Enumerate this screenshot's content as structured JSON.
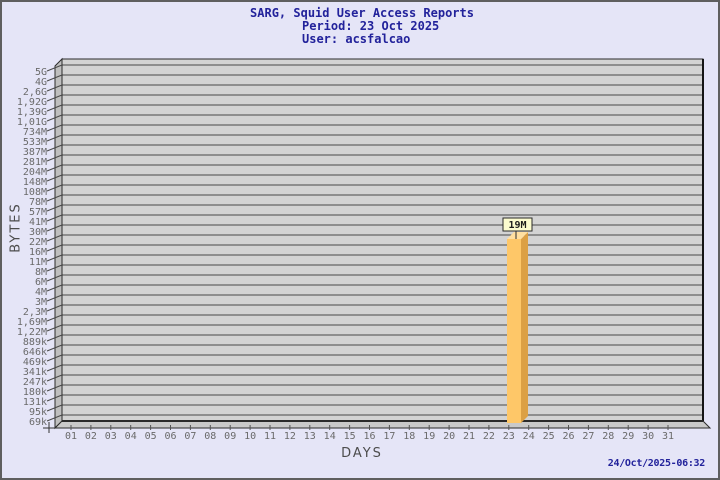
{
  "title": {
    "line1": "SARG, Squid User Access Reports",
    "line2": "Period: 23 Oct 2025",
    "line3": "User: acsfalcao"
  },
  "footer": {
    "timestamp": "24/Oct/2025-06:32"
  },
  "chart_data": {
    "type": "bar",
    "title": "SARG, Squid User Access Reports",
    "subtitle": "Period: 23 Oct 2025",
    "user": "acsfalcao",
    "xlabel": "DAYS",
    "ylabel": "BYTES",
    "y_scale": "log-like",
    "y_tick_labels": [
      "5G",
      "4G",
      "2,6G",
      "1,92G",
      "1,39G",
      "1,01G",
      "734M",
      "533M",
      "387M",
      "281M",
      "204M",
      "148M",
      "108M",
      "78M",
      "57M",
      "41M",
      "30M",
      "22M",
      "16M",
      "11M",
      "8M",
      "6M",
      "4M",
      "3M",
      "2,3M",
      "1,69M",
      "1,22M",
      "889k",
      "646k",
      "469k",
      "341k",
      "247k",
      "180k",
      "131k",
      "95k",
      "69k"
    ],
    "x_tick_labels": [
      "01",
      "02",
      "03",
      "04",
      "05",
      "06",
      "07",
      "08",
      "09",
      "10",
      "11",
      "12",
      "13",
      "14",
      "15",
      "16",
      "17",
      "18",
      "19",
      "20",
      "21",
      "22",
      "23",
      "24",
      "25",
      "26",
      "27",
      "28",
      "29",
      "30",
      "31"
    ],
    "series": [
      {
        "name": "BYTES",
        "points": [
          {
            "day": "23",
            "value_label": "19M",
            "approx_value_bytes": 19000000
          }
        ]
      }
    ],
    "legend": null,
    "grid": true
  },
  "colors": {
    "background": "#E5E5F7",
    "frame_border": "#5f5f5f",
    "navy_text": "#22229B",
    "plot_plane": "#D3D3D3",
    "wall": "#BFBFBF",
    "floor": "#C9C9C9",
    "gridline": "#4a4a4a",
    "plot_edge": "#2b2b2b",
    "tick_text": "#6a6a6a",
    "axis_text": "#4c4c4c",
    "bar_face": "#FEC768",
    "bar_side": "#DCA044",
    "bar_top": "#FFDFA0",
    "value_box_bg": "#FBFBCE",
    "value_box_border": "#2b2b2b"
  }
}
